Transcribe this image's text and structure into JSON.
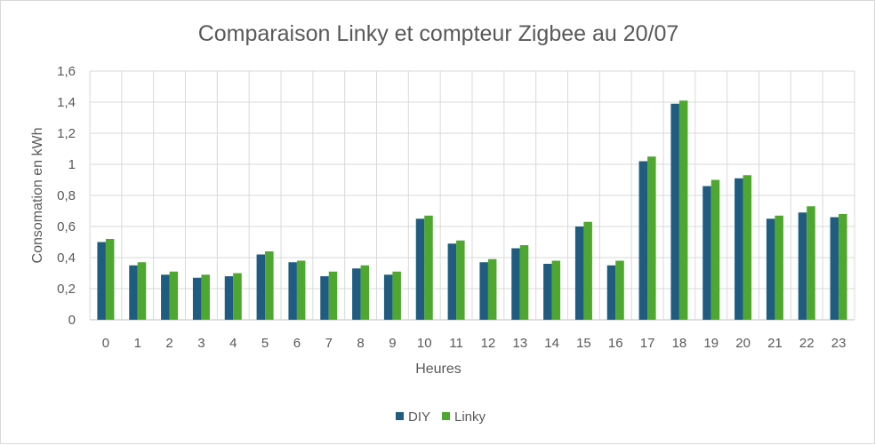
{
  "chart_data": {
    "type": "bar",
    "title": "Comparaison Linky et compteur Zigbee au 20/07",
    "xlabel": "Heures",
    "ylabel": "Consomation en kWh",
    "categories": [
      "0",
      "1",
      "2",
      "3",
      "4",
      "5",
      "6",
      "7",
      "8",
      "9",
      "10",
      "11",
      "12",
      "13",
      "14",
      "15",
      "16",
      "17",
      "18",
      "19",
      "20",
      "21",
      "22",
      "23"
    ],
    "series": [
      {
        "name": "DIY",
        "color": "#1f5c80",
        "values": [
          0.5,
          0.35,
          0.29,
          0.27,
          0.28,
          0.42,
          0.37,
          0.28,
          0.33,
          0.29,
          0.65,
          0.49,
          0.37,
          0.46,
          0.36,
          0.6,
          0.35,
          1.02,
          1.39,
          0.86,
          0.91,
          0.65,
          0.69,
          0.66
        ]
      },
      {
        "name": "Linky",
        "color": "#4ea72e",
        "values": [
          0.52,
          0.37,
          0.31,
          0.29,
          0.3,
          0.44,
          0.38,
          0.31,
          0.35,
          0.31,
          0.67,
          0.51,
          0.39,
          0.48,
          0.38,
          0.63,
          0.38,
          1.05,
          1.41,
          0.9,
          0.93,
          0.67,
          0.73,
          0.68
        ]
      }
    ],
    "ylim": [
      0,
      1.6
    ],
    "yticks": [
      0,
      0.2,
      0.4,
      0.6,
      0.8,
      1,
      1.2,
      1.4,
      1.6
    ],
    "ytick_labels": [
      "0",
      "0,2",
      "0,4",
      "0,6",
      "0,8",
      "1",
      "1,2",
      "1,4",
      "1,6"
    ],
    "grid": true,
    "legend_position": "bottom"
  }
}
